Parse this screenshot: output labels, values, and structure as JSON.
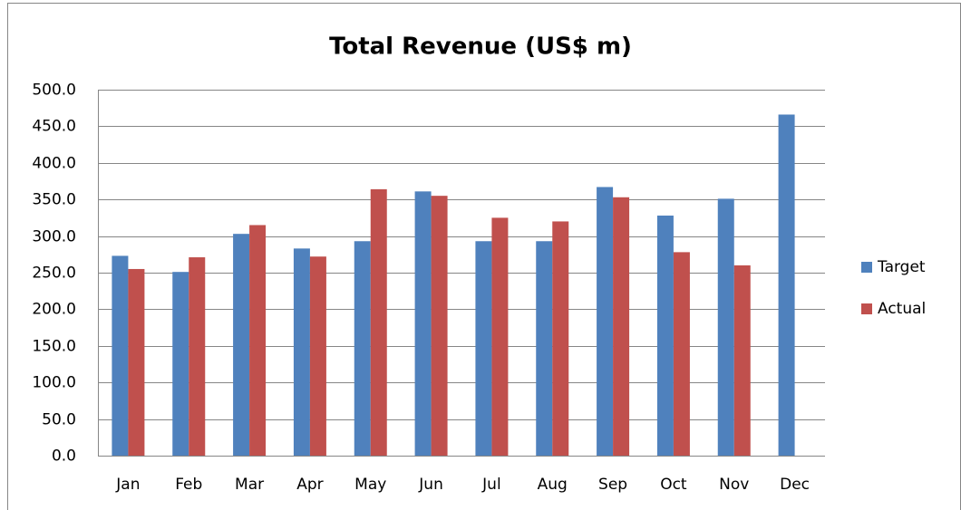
{
  "chart_data": {
    "type": "bar",
    "title": "Total Revenue (US$ m)",
    "categories": [
      "Jan",
      "Feb",
      "Mar",
      "Apr",
      "May",
      "Jun",
      "Jul",
      "Aug",
      "Sep",
      "Oct",
      "Nov",
      "Dec"
    ],
    "series": [
      {
        "name": "Target",
        "color": "#4f81bd",
        "values": [
          273,
          251,
          303,
          283,
          293,
          361,
          293,
          293,
          367,
          328,
          351,
          466
        ]
      },
      {
        "name": "Actual",
        "color": "#c0504d",
        "values": [
          255,
          271,
          315,
          272,
          364,
          355,
          325,
          320,
          353,
          278,
          260,
          null
        ]
      }
    ],
    "ylim": [
      0,
      500
    ],
    "yticks": [
      {
        "value": 0,
        "label": "0.0"
      },
      {
        "value": 50,
        "label": "50.0"
      },
      {
        "value": 100,
        "label": "100.0"
      },
      {
        "value": 150,
        "label": "150.0"
      },
      {
        "value": 200,
        "label": "200.0"
      },
      {
        "value": 250,
        "label": "250.0"
      },
      {
        "value": 300,
        "label": "300.0"
      },
      {
        "value": 350,
        "label": "350.0"
      },
      {
        "value": 400,
        "label": "400.0"
      },
      {
        "value": 450,
        "label": "450.0"
      },
      {
        "value": 500,
        "label": "500.0"
      }
    ],
    "grid": true,
    "legend": "right"
  }
}
